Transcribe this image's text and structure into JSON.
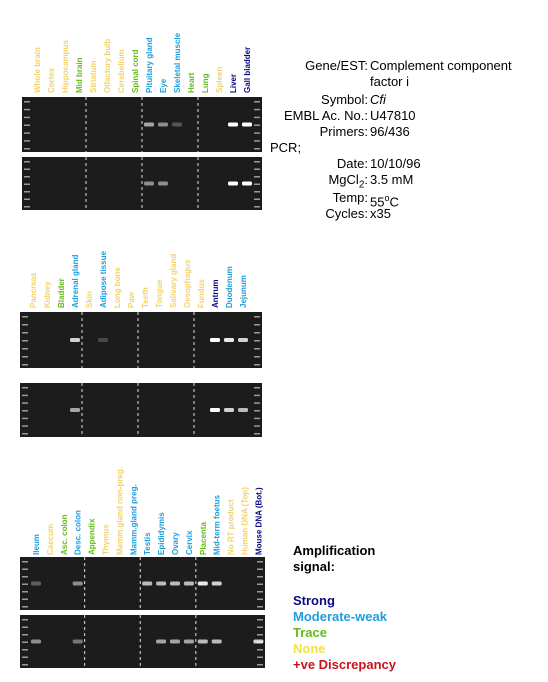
{
  "panels": [
    {
      "lanes": [
        {
          "label": "Whole brain",
          "color": "#f2d36b"
        },
        {
          "label": "Cortex",
          "color": "#f2d36b"
        },
        {
          "label": "Hippocampus",
          "color": "#f2d36b"
        },
        {
          "label": "Mid brain",
          "color": "#66bb1a"
        },
        {
          "label": "Striatum",
          "color": "#f2d36b"
        },
        {
          "label": "Olfactory bulb",
          "color": "#f2d36b"
        },
        {
          "label": "Cerebellum",
          "color": "#f2d36b"
        },
        {
          "label": "Spinal cord",
          "color": "#66bb1a"
        },
        {
          "label": "Pituitary gland",
          "color": "#1e9fdc"
        },
        {
          "label": "Eye",
          "color": "#1e9fdc"
        },
        {
          "label": "Skeletal muscle",
          "color": "#1e9fdc"
        },
        {
          "label": "Heart",
          "color": "#66bb1a"
        },
        {
          "label": "Lung",
          "color": "#66bb1a"
        },
        {
          "label": "Spleen",
          "color": "#f2d36b"
        },
        {
          "label": "Liver",
          "color": "#0b0b80"
        },
        {
          "label": "Gall bladder",
          "color": "#0b0b80"
        }
      ]
    },
    {
      "lanes": [
        {
          "label": "Pancreas",
          "color": "#f2d36b"
        },
        {
          "label": "Kidney",
          "color": "#f2d36b"
        },
        {
          "label": "Bladder",
          "color": "#66bb1a"
        },
        {
          "label": "Adrenal gland",
          "color": "#1e9fdc"
        },
        {
          "label": "Skin",
          "color": "#f2d36b"
        },
        {
          "label": "Adipose tissue",
          "color": "#1e9fdc"
        },
        {
          "label": "Long bone",
          "color": "#f2d36b"
        },
        {
          "label": "Paw",
          "color": "#f2d36b"
        },
        {
          "label": "Teeth",
          "color": "#f2d36b"
        },
        {
          "label": "Tongue",
          "color": "#f2d36b"
        },
        {
          "label": "Salivary gland",
          "color": "#f2d36b"
        },
        {
          "label": "Oesophagus",
          "color": "#f2d36b"
        },
        {
          "label": "Fundus",
          "color": "#f2d36b"
        },
        {
          "label": "Antrum",
          "color": "#0b0b80"
        },
        {
          "label": "Duodenum",
          "color": "#1e9fdc"
        },
        {
          "label": "Jejunum",
          "color": "#1e9fdc"
        }
      ]
    },
    {
      "lanes": [
        {
          "label": "Ileum",
          "color": "#1e9fdc"
        },
        {
          "label": "Caecum",
          "color": "#f2d36b"
        },
        {
          "label": "Asc. colon",
          "color": "#66bb1a"
        },
        {
          "label": "Desc. colon",
          "color": "#1e9fdc"
        },
        {
          "label": "Appendix",
          "color": "#66bb1a"
        },
        {
          "label": "Thymus",
          "color": "#f2d36b"
        },
        {
          "label": "Mamm.gland non-preg.",
          "color": "#f2d36b"
        },
        {
          "label": "Mamm.gland preg.",
          "color": "#1e9fdc"
        },
        {
          "label": "Testis",
          "color": "#1e9fdc"
        },
        {
          "label": "Epididymis",
          "color": "#1e9fdc"
        },
        {
          "label": "Ovary",
          "color": "#1e9fdc"
        },
        {
          "label": "Cervix",
          "color": "#1e9fdc"
        },
        {
          "label": "Placenta",
          "color": "#66bb1a"
        },
        {
          "label": "Mid-term foetus",
          "color": "#1e9fdc"
        },
        {
          "label": "No RT product",
          "color": "#f2d36b"
        },
        {
          "label": "Human DNA (Top)",
          "color": "#f2d36b"
        },
        {
          "label": "Mouse DNA (Bot.)",
          "color": "#0b0b80"
        }
      ]
    }
  ],
  "info": {
    "gene": {
      "label": "Gene/EST:",
      "value": "Complement component factor i"
    },
    "symbol": {
      "label": "Symbol:",
      "value": "Cfi"
    },
    "embl": {
      "label": "EMBL Ac. No.:",
      "value": "U47810"
    },
    "primers": {
      "label": "Primers:",
      "value": "96/436"
    },
    "pcr": "PCR;",
    "date": {
      "label": "Date:",
      "value": "10/10/96"
    },
    "mgcl": {
      "label": [
        "MgCl",
        "2",
        ":"
      ],
      "value": "3.5 mM"
    },
    "temp": {
      "label": "Temp:",
      "value": [
        "55",
        "o",
        "C"
      ]
    },
    "cycles": {
      "label": "Cycles:",
      "value": "x35"
    }
  },
  "legend": {
    "title": "Amplification signal:",
    "items": [
      {
        "label": "Strong",
        "color": "#0b0b80"
      },
      {
        "label": "Moderate-weak",
        "color": "#1e9fdc"
      },
      {
        "label": "Trace",
        "color": "#66bb1a"
      },
      {
        "label": "None",
        "color": "#f2e24a"
      },
      {
        "label": "+ve Discrepancy",
        "color": "#c8141e"
      }
    ]
  }
}
